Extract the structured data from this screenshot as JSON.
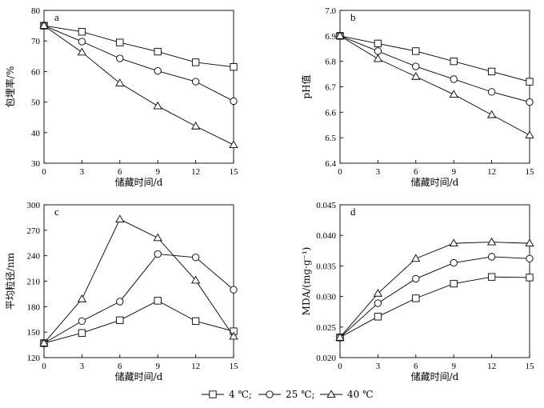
{
  "legend": {
    "entries": [
      {
        "label": "4 ℃;",
        "marker": "square"
      },
      {
        "label": "25 ℃;",
        "marker": "circle"
      },
      {
        "label": "40 ℃",
        "marker": "triangle"
      }
    ]
  },
  "chart_data": [
    {
      "type": "line",
      "panel": "a",
      "xlabel": "储藏时间/d",
      "ylabel": "包埋率/%",
      "xlim": [
        0,
        15
      ],
      "ylim": [
        30,
        80
      ],
      "xticks": [
        0,
        3,
        6,
        9,
        12,
        15
      ],
      "xtick_labels": [
        "0",
        "3",
        "6",
        "9",
        "12",
        "15"
      ],
      "yticks": [
        30,
        40,
        50,
        60,
        70,
        80
      ],
      "ytick_labels": [
        "30",
        "40",
        "50",
        "60",
        "70",
        "80"
      ],
      "x": [
        0,
        3,
        6,
        9,
        12,
        15
      ],
      "series": [
        {
          "name": "4 ℃",
          "marker": "square",
          "values": [
            75.0,
            73.0,
            69.5,
            66.5,
            63.0,
            61.5
          ]
        },
        {
          "name": "25 ℃",
          "marker": "circle",
          "values": [
            75.0,
            69.8,
            64.3,
            60.2,
            56.7,
            50.3
          ]
        },
        {
          "name": "40 ℃",
          "marker": "triangle",
          "values": [
            75.0,
            66.3,
            56.2,
            48.7,
            42.1,
            36.0
          ]
        }
      ]
    },
    {
      "type": "line",
      "panel": "b",
      "xlabel": "储藏时间/d",
      "ylabel": "pH值",
      "xlim": [
        0,
        15
      ],
      "ylim": [
        6.4,
        7.0
      ],
      "xticks": [
        0,
        3,
        6,
        9,
        12,
        15
      ],
      "xtick_labels": [
        "0",
        "3",
        "6",
        "9",
        "12",
        "15"
      ],
      "yticks": [
        6.4,
        6.5,
        6.6,
        6.7,
        6.8,
        6.9,
        7.0
      ],
      "ytick_labels": [
        "6.4",
        "6.5",
        "6.6",
        "6.7",
        "6.8",
        "6.9",
        "7.0"
      ],
      "x": [
        0,
        3,
        6,
        9,
        12,
        15
      ],
      "series": [
        {
          "name": "4 ℃",
          "marker": "square",
          "values": [
            6.9,
            6.87,
            6.84,
            6.8,
            6.76,
            6.72
          ]
        },
        {
          "name": "25 ℃",
          "marker": "circle",
          "values": [
            6.9,
            6.84,
            6.78,
            6.73,
            6.68,
            6.64
          ]
        },
        {
          "name": "40 ℃",
          "marker": "triangle",
          "values": [
            6.9,
            6.81,
            6.74,
            6.67,
            6.59,
            6.51
          ]
        }
      ]
    },
    {
      "type": "line",
      "panel": "c",
      "xlabel": "储藏时间/d",
      "ylabel": "平均粒径/nm",
      "xlim": [
        0,
        15
      ],
      "ylim": [
        120,
        300
      ],
      "xticks": [
        0,
        3,
        6,
        9,
        12,
        15
      ],
      "xtick_labels": [
        "0",
        "3",
        "6",
        "9",
        "12",
        "15"
      ],
      "yticks": [
        120,
        150,
        180,
        210,
        240,
        270,
        300
      ],
      "ytick_labels": [
        "120",
        "150",
        "180",
        "210",
        "240",
        "270",
        "300"
      ],
      "x": [
        0,
        3,
        6,
        9,
        12,
        15
      ],
      "series": [
        {
          "name": "4 ℃",
          "marker": "square",
          "values": [
            137,
            149,
            164,
            187,
            163,
            151
          ]
        },
        {
          "name": "25 ℃",
          "marker": "circle",
          "values": [
            137,
            163,
            186,
            242,
            238,
            200
          ]
        },
        {
          "name": "40 ℃",
          "marker": "triangle",
          "values": [
            137,
            189,
            283,
            261,
            211,
            145
          ]
        }
      ]
    },
    {
      "type": "line",
      "panel": "d",
      "xlabel": "储藏时间/d",
      "ylabel": "MDA/(mg·g⁻¹)",
      "xlim": [
        0,
        15
      ],
      "ylim": [
        0.02,
        0.045
      ],
      "xticks": [
        0,
        3,
        6,
        9,
        12,
        15
      ],
      "xtick_labels": [
        "0",
        "3",
        "6",
        "9",
        "12",
        "15"
      ],
      "yticks": [
        0.02,
        0.025,
        0.03,
        0.035,
        0.04,
        0.045
      ],
      "ytick_labels": [
        "0.020",
        "0.025",
        "0.030",
        "0.035",
        "0.040",
        "0.045"
      ],
      "x": [
        0,
        3,
        6,
        9,
        12,
        15
      ],
      "series": [
        {
          "name": "4 ℃",
          "marker": "square",
          "values": [
            0.0233,
            0.0267,
            0.0297,
            0.0321,
            0.0332,
            0.0331
          ]
        },
        {
          "name": "25 ℃",
          "marker": "circle",
          "values": [
            0.0233,
            0.0289,
            0.0329,
            0.0355,
            0.0365,
            0.0362
          ]
        },
        {
          "name": "40 ℃",
          "marker": "triangle",
          "values": [
            0.0233,
            0.0305,
            0.0362,
            0.0387,
            0.0389,
            0.0387
          ]
        }
      ]
    }
  ]
}
